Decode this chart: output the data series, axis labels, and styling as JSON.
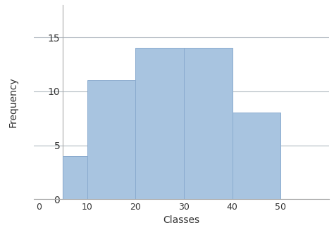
{
  "bar_edges": [
    5,
    10,
    20,
    30,
    40,
    50
  ],
  "bar_heights": [
    4,
    11,
    14,
    14,
    8
  ],
  "bar_color": "#a8c4e0",
  "bar_edgecolor": "#8aabcf",
  "xlabel": "Classes",
  "ylabel": "Frequency",
  "xticks": [
    0,
    10,
    20,
    30,
    40,
    50
  ],
  "yticks": [
    0,
    5,
    10,
    15
  ],
  "ylim": [
    0,
    18
  ],
  "xlim": [
    -1,
    60
  ],
  "grid_color": "#b0b8c0",
  "grid_linewidth": 0.8,
  "ylabel_fontsize": 10,
  "xlabel_fontsize": 10,
  "tick_fontsize": 9,
  "background_color": "#ffffff",
  "spine_color": "#aaaaaa",
  "axis_x_position": 5
}
